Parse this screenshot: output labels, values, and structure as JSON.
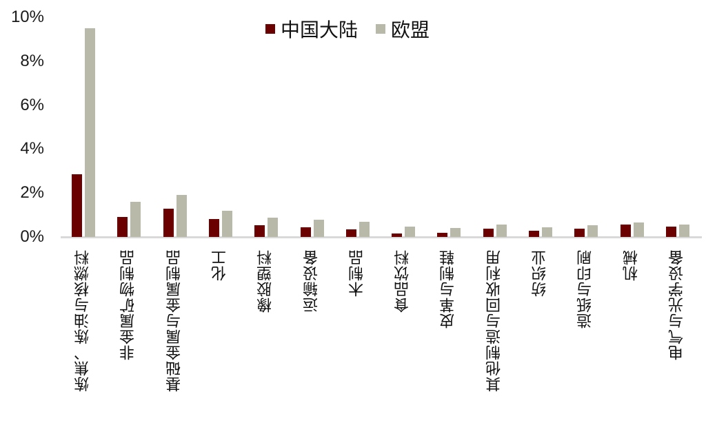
{
  "chart_data": {
    "type": "bar",
    "title": "",
    "xlabel": "",
    "ylabel": "",
    "ylim": [
      0,
      10
    ],
    "yticks": [
      "0%",
      "2%",
      "4%",
      "6%",
      "8%",
      "10%"
    ],
    "grid": false,
    "legend_position": "top-center",
    "categories": [
      "炼焦、炼油与核燃料",
      "非金属矿物制品",
      "基础金属与金属制品",
      "化工",
      "橡胶塑料",
      "运输设备",
      "木制品",
      "食品饮料",
      "皮革与制鞋",
      "其他制造与回收利用",
      "纺织业",
      "造纸与印刷",
      "机械",
      "电气与光学设备"
    ],
    "series": [
      {
        "name": "中国大陆",
        "color": "#6b0000",
        "values": [
          2.85,
          0.9,
          1.3,
          0.8,
          0.52,
          0.45,
          0.36,
          0.16,
          0.2,
          0.38,
          0.28,
          0.38,
          0.57,
          0.48
        ]
      },
      {
        "name": "欧盟",
        "color": "#b9b9aa",
        "values": [
          9.5,
          1.6,
          1.92,
          1.18,
          0.88,
          0.78,
          0.7,
          0.48,
          0.42,
          0.57,
          0.45,
          0.52,
          0.65,
          0.57
        ]
      }
    ]
  },
  "legend": {
    "items": [
      {
        "label": "中国大陆",
        "color": "#6b0000"
      },
      {
        "label": "欧盟",
        "color": "#b9b9aa"
      }
    ]
  }
}
